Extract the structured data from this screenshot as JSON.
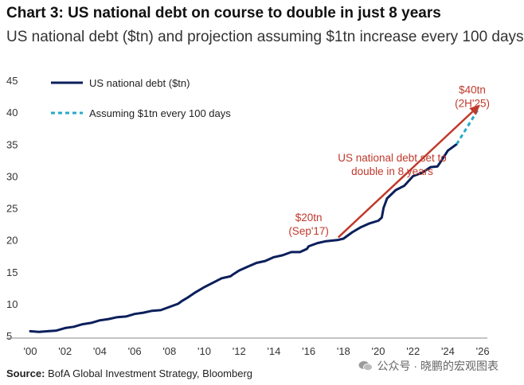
{
  "header": {
    "title": "Chart 3: US national debt on course to double in just 8 years",
    "subtitle": "US national debt ($tn) and projection assuming $1tn increase every 100 days"
  },
  "footer": {
    "source_label": "Source:",
    "source_text": " BofA Global Investment Strategy, Bloomberg",
    "watermark": "公众号 · 晓鹏的宏观图表"
  },
  "colors": {
    "series_line": "#0b1f5c",
    "projection_line": "#29a8c9",
    "annotation": "#c0392b"
  },
  "chart_data": {
    "type": "line",
    "title": "Chart 3: US national debt on course to double in just 8 years",
    "subtitle": "US national debt ($tn) and projection assuming $1tn increase every 100 days",
    "xlabel": "",
    "ylabel": "",
    "xlim": [
      2000,
      2027
    ],
    "ylim": [
      5,
      45
    ],
    "yticks": [
      5,
      10,
      15,
      20,
      25,
      30,
      35,
      40,
      45
    ],
    "xticks": [
      2000,
      2002,
      2004,
      2006,
      2008,
      2010,
      2012,
      2014,
      2016,
      2018,
      2020,
      2022,
      2024,
      2026
    ],
    "xtick_labels": [
      "'00",
      "'02",
      "'04",
      "'06",
      "'08",
      "'10",
      "'12",
      "'14",
      "'16",
      "'18",
      "'20",
      "'22",
      "'24",
      "'26"
    ],
    "grid": false,
    "legend_position": "top-left",
    "series": [
      {
        "name": "US national debt ($tn)",
        "style": "solid",
        "x": [
          2000.0,
          2000.5,
          2001.0,
          2001.5,
          2002.0,
          2002.5,
          2003.0,
          2003.5,
          2004.0,
          2004.5,
          2005.0,
          2005.5,
          2006.0,
          2006.5,
          2007.0,
          2007.5,
          2008.0,
          2008.5,
          2008.75,
          2009.0,
          2009.5,
          2010.0,
          2010.5,
          2011.0,
          2011.5,
          2011.6,
          2012.0,
          2012.5,
          2013.0,
          2013.5,
          2014.0,
          2014.5,
          2015.0,
          2015.5,
          2015.9,
          2016.0,
          2016.5,
          2017.0,
          2017.7,
          2018.0,
          2018.5,
          2019.0,
          2019.5,
          2020.0,
          2020.2,
          2020.3,
          2020.5,
          2021.0,
          2021.5,
          2022.0,
          2022.5,
          2023.0,
          2023.4,
          2023.6,
          2024.0,
          2024.5
        ],
        "y": [
          5.7,
          5.6,
          5.7,
          5.8,
          6.2,
          6.4,
          6.8,
          7.0,
          7.4,
          7.6,
          7.9,
          8.0,
          8.4,
          8.6,
          8.9,
          9.0,
          9.5,
          10.0,
          10.5,
          10.9,
          11.8,
          12.6,
          13.3,
          14.0,
          14.3,
          14.5,
          15.2,
          15.8,
          16.4,
          16.7,
          17.3,
          17.6,
          18.1,
          18.1,
          18.6,
          19.0,
          19.5,
          19.8,
          20.0,
          20.2,
          21.2,
          22.0,
          22.6,
          23.0,
          23.5,
          25.0,
          26.5,
          27.8,
          28.5,
          30.0,
          30.5,
          31.4,
          31.5,
          32.3,
          34.0,
          35.0
        ]
      },
      {
        "name": "Assuming $1tn every 100 days",
        "style": "dashed",
        "x": [
          2024.5,
          2025.75
        ],
        "y": [
          35.0,
          40.5
        ]
      }
    ],
    "annotations": [
      {
        "text_lines": [
          "$20tn",
          "(Sep'17)"
        ],
        "x": 2016.0,
        "y": 20.8
      },
      {
        "text_lines": [
          "$40tn",
          "(2H'25)"
        ],
        "x": 2025.4,
        "y": 40.8
      },
      {
        "text_lines": [
          "US national debt set to",
          "double in 8 years"
        ],
        "x": 2020.8,
        "y": 30.2
      }
    ],
    "arrow": {
      "from": [
        2017.7,
        20.4
      ],
      "to": [
        2025.85,
        41.2
      ]
    }
  }
}
